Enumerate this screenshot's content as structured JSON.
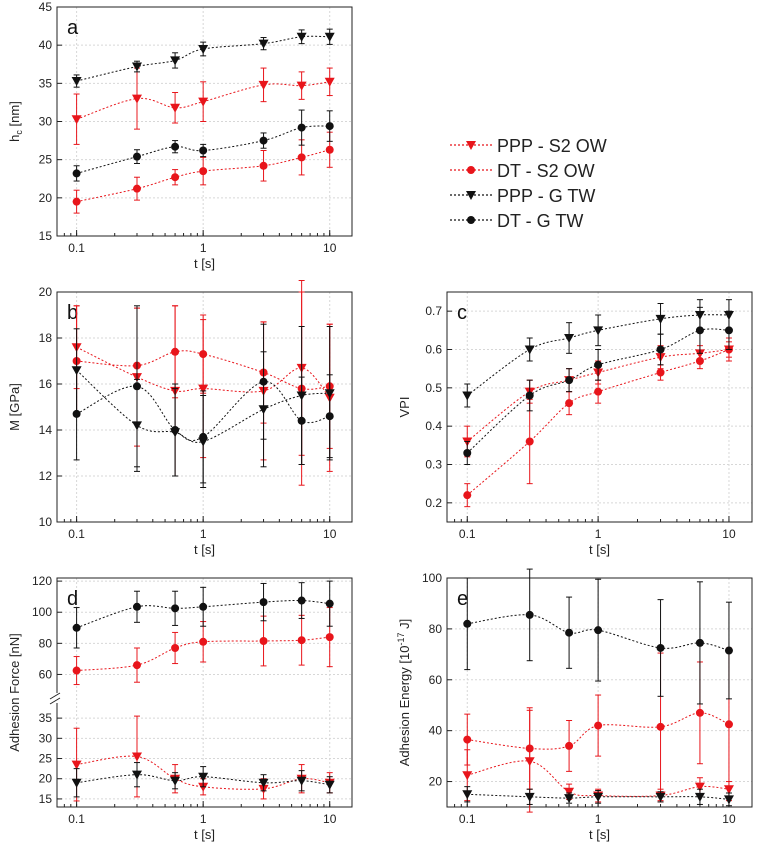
{
  "colors": {
    "red": "#e8151b",
    "black": "#111111",
    "grid": "#d7d7d7"
  },
  "legend": [
    {
      "label": "PPP - S2 OW",
      "marker": "triangle-down",
      "color": "red"
    },
    {
      "label": "DT - S2 OW",
      "marker": "circle",
      "color": "red"
    },
    {
      "label": "PPP - G TW",
      "marker": "triangle-down",
      "color": "black"
    },
    {
      "label": "DT - G TW",
      "marker": "circle",
      "color": "black"
    }
  ],
  "chart_data": [
    {
      "panel": "a",
      "type": "scatter",
      "xlabel": "t [s]",
      "ylabel": "h_c [nm]",
      "xscale": "log",
      "xlim": [
        0.07,
        15
      ],
      "ylim": [
        15,
        45
      ],
      "xticks": [
        0.1,
        1,
        10
      ],
      "xtick_labels": [
        "0.1",
        "1",
        "10"
      ],
      "yticks": [
        15,
        20,
        25,
        30,
        35,
        40,
        45
      ],
      "x": [
        0.1,
        0.3,
        0.6,
        1,
        3,
        6,
        10
      ],
      "series": [
        {
          "name": "PPP - S2 OW",
          "values": [
            30.3,
            33.0,
            31.8,
            32.6,
            34.8,
            34.7,
            35.2
          ],
          "err": [
            3.3,
            4.0,
            2.0,
            2.6,
            2.2,
            1.8,
            1.8
          ]
        },
        {
          "name": "DT - S2 OW",
          "values": [
            19.5,
            21.2,
            22.7,
            23.5,
            24.2,
            25.3,
            26.3
          ],
          "err": [
            1.5,
            1.5,
            1.0,
            1.8,
            2.0,
            2.3,
            2.3
          ]
        },
        {
          "name": "PPP - G TW",
          "values": [
            35.3,
            37.2,
            38.0,
            39.5,
            40.2,
            41.1,
            41.1
          ],
          "err": [
            0.8,
            0.7,
            1.0,
            0.9,
            0.8,
            0.9,
            1.0
          ]
        },
        {
          "name": "DT - G TW",
          "values": [
            23.2,
            25.4,
            26.7,
            26.2,
            27.5,
            29.2,
            29.4
          ],
          "err": [
            1.0,
            0.9,
            0.8,
            0.8,
            1.0,
            2.3,
            2.0
          ]
        }
      ]
    },
    {
      "panel": "b",
      "type": "scatter",
      "xlabel": "t [s]",
      "ylabel": "M [GPa]",
      "xscale": "log",
      "xlim": [
        0.07,
        15
      ],
      "ylim": [
        10,
        20
      ],
      "xticks": [
        0.1,
        1,
        10
      ],
      "xtick_labels": [
        "0.1",
        "1",
        "10"
      ],
      "yticks": [
        10,
        12,
        14,
        16,
        18,
        20
      ],
      "x": [
        0.1,
        0.3,
        0.6,
        1,
        3,
        6,
        10
      ],
      "series": [
        {
          "name": "PPP - S2 OW",
          "values": [
            17.6,
            16.3,
            15.7,
            15.8,
            15.7,
            16.7,
            15.4
          ],
          "err": [
            1.8,
            3.0,
            3.7,
            3.0,
            3.0,
            3.8,
            3.2
          ]
        },
        {
          "name": "DT - S2 OW",
          "values": [
            17.0,
            16.8,
            17.4,
            17.3,
            16.5,
            15.8,
            15.9
          ],
          "err": [
            2.4,
            2.5,
            2.0,
            1.7,
            2.2,
            4.2,
            2.7
          ]
        },
        {
          "name": "PPP - G TW",
          "values": [
            16.6,
            14.2,
            13.9,
            13.5,
            14.9,
            15.5,
            15.6
          ],
          "err": [
            1.8,
            2.0,
            1.9,
            2.0,
            2.5,
            3.0,
            2.9
          ]
        },
        {
          "name": "DT - G TW",
          "values": [
            14.7,
            15.9,
            14.0,
            13.7,
            16.1,
            14.4,
            14.6
          ],
          "err": [
            2.0,
            3.5,
            2.0,
            2.0,
            2.5,
            1.9,
            1.8
          ]
        }
      ]
    },
    {
      "panel": "c",
      "type": "scatter",
      "xlabel": "t [s]",
      "ylabel": "VPI",
      "xscale": "log",
      "xlim": [
        0.07,
        15
      ],
      "ylim": [
        0.15,
        0.75
      ],
      "xticks": [
        0.1,
        1,
        10
      ],
      "xtick_labels": [
        "0.1",
        "1",
        "10"
      ],
      "yticks": [
        0.2,
        0.3,
        0.4,
        0.5,
        0.6,
        0.7
      ],
      "ytick_labels": [
        "0.2",
        "0.3",
        "0.4",
        "0.5",
        "0.6",
        "0.7"
      ],
      "x": [
        0.1,
        0.3,
        0.6,
        1,
        3,
        6,
        10
      ],
      "series": [
        {
          "name": "PPP - S2 OW",
          "values": [
            0.36,
            0.49,
            0.52,
            0.54,
            0.58,
            0.59,
            0.6
          ],
          "err": [
            0.04,
            0.03,
            0.03,
            0.03,
            0.03,
            0.02,
            0.03
          ]
        },
        {
          "name": "DT - S2 OW",
          "values": [
            0.22,
            0.36,
            0.46,
            0.49,
            0.54,
            0.57,
            0.6
          ],
          "err": [
            0.03,
            0.11,
            0.03,
            0.03,
            0.02,
            0.02,
            0.02
          ]
        },
        {
          "name": "PPP - G TW",
          "values": [
            0.48,
            0.6,
            0.63,
            0.65,
            0.68,
            0.69,
            0.69
          ],
          "err": [
            0.03,
            0.03,
            0.04,
            0.04,
            0.04,
            0.04,
            0.04
          ]
        },
        {
          "name": "DT - G TW",
          "values": [
            0.33,
            0.48,
            0.52,
            0.56,
            0.6,
            0.65,
            0.65
          ],
          "err": [
            0.03,
            0.04,
            0.03,
            0.04,
            0.04,
            0.06,
            0.05
          ]
        }
      ]
    },
    {
      "panel": "d",
      "type": "scatter",
      "xlabel": "t [s]",
      "ylabel": "Adhesion Force [nN]",
      "xscale": "log",
      "xlim": [
        0.07,
        15
      ],
      "broken_yaxis": true,
      "ylim_lower": [
        13,
        38
      ],
      "ylim_upper": [
        50,
        122
      ],
      "xticks": [
        0.1,
        1,
        10
      ],
      "xtick_labels": [
        "0.1",
        "1",
        "10"
      ],
      "yticks_lower": [
        15,
        20,
        25,
        30,
        35
      ],
      "yticks_upper": [
        60,
        80,
        100,
        120
      ],
      "x": [
        0.1,
        0.3,
        0.6,
        1,
        3,
        6,
        10
      ],
      "series": [
        {
          "name": "PPP - S2 OW",
          "values": [
            23.5,
            25.5,
            20.0,
            18.0,
            17.5,
            20.0,
            19.0
          ],
          "err": [
            9.0,
            10.0,
            3.5,
            2.0,
            2.5,
            3.5,
            2.5
          ]
        },
        {
          "name": "DT - S2 OW",
          "values": [
            62.5,
            66.0,
            77.0,
            81.0,
            81.5,
            82.0,
            84.0
          ],
          "err": [
            9.0,
            11.0,
            10.0,
            13.0,
            16.0,
            16.0,
            19.0
          ]
        },
        {
          "name": "PPP - G TW",
          "values": [
            19.0,
            21.0,
            19.5,
            20.5,
            19.0,
            19.5,
            18.5
          ],
          "err": [
            3.5,
            3.0,
            2.0,
            2.5,
            2.0,
            2.5,
            2.0
          ]
        },
        {
          "name": "DT - G TW",
          "values": [
            90.0,
            103.5,
            102.5,
            103.5,
            106.5,
            107.5,
            105.5
          ],
          "err": [
            13.0,
            10.0,
            11.0,
            12.5,
            12.0,
            11.5,
            14.5
          ]
        }
      ]
    },
    {
      "panel": "e",
      "type": "scatter",
      "xlabel": "t [s]",
      "ylabel": "Adhesion Energy [10^-17 J]",
      "xscale": "log",
      "xlim": [
        0.07,
        15
      ],
      "ylim": [
        10,
        100
      ],
      "xticks": [
        0.1,
        1,
        10
      ],
      "xtick_labels": [
        "0.1",
        "1",
        "10"
      ],
      "yticks": [
        20,
        40,
        60,
        80,
        100
      ],
      "x": [
        0.1,
        0.3,
        0.6,
        1,
        3,
        6,
        10
      ],
      "series": [
        {
          "name": "PPP - S2 OW",
          "values": [
            22.5,
            28.0,
            16.0,
            14.5,
            14.5,
            18.0,
            17.0
          ],
          "err": [
            10.0,
            20.0,
            3.0,
            2.5,
            2.5,
            3.5,
            3.0
          ]
        },
        {
          "name": "DT - S2 OW",
          "values": [
            36.5,
            33.0,
            34.0,
            42.0,
            41.5,
            47.0,
            42.5
          ],
          "err": [
            10.0,
            16.0,
            10.0,
            12.0,
            29.0,
            20.0,
            30.0
          ]
        },
        {
          "name": "PPP - G TW",
          "values": [
            15.0,
            14.0,
            13.5,
            14.0,
            14.0,
            14.0,
            13.0
          ],
          "err": [
            3.0,
            3.0,
            2.0,
            2.5,
            2.0,
            3.0,
            2.5
          ]
        },
        {
          "name": "DT - G TW",
          "values": [
            82.0,
            85.5,
            78.5,
            79.5,
            72.5,
            74.5,
            71.5
          ],
          "err": [
            18.0,
            18.0,
            14.0,
            20.0,
            19.0,
            24.0,
            19.0
          ]
        }
      ]
    }
  ]
}
